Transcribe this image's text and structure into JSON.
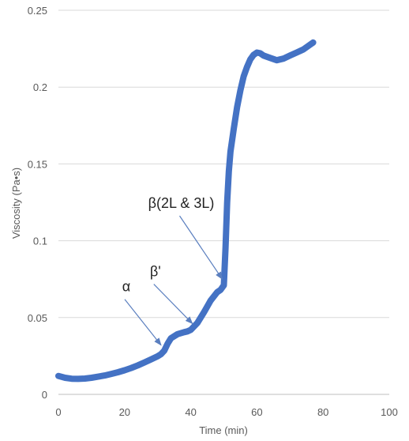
{
  "chart_data": {
    "type": "line",
    "title": "",
    "xlabel": "Time (min)",
    "ylabel": "Viscosity (Pa•s)",
    "xlim": [
      0,
      100
    ],
    "ylim": [
      0,
      0.25
    ],
    "xticks": [
      0,
      20,
      40,
      60,
      80,
      100
    ],
    "xtick_labels": [
      "0",
      "20",
      "40",
      "60",
      "80",
      "100"
    ],
    "yticks": [
      0,
      0.05,
      0.1,
      0.15,
      0.2,
      0.25
    ],
    "ytick_labels": [
      "0",
      "0.05",
      "0.1",
      "0.15",
      "0.2",
      "0.25"
    ],
    "grid": "horizontal",
    "series": [
      {
        "color": "#4472C4",
        "x": [
          0,
          2,
          4,
          6,
          8,
          10,
          12,
          14,
          16,
          18,
          20,
          22,
          24,
          26,
          28,
          30,
          31,
          32,
          33,
          34,
          36,
          38,
          39,
          40,
          42,
          44,
          46,
          48,
          49,
          50,
          50.5,
          51,
          51.5,
          52,
          53,
          54,
          55,
          56,
          57,
          58,
          59,
          60,
          61,
          62,
          64,
          66,
          68,
          70,
          72,
          74,
          76,
          77
        ],
        "y": [
          0.012,
          0.0108,
          0.0102,
          0.0101,
          0.0103,
          0.0108,
          0.0115,
          0.0123,
          0.0133,
          0.0144,
          0.0157,
          0.0172,
          0.0189,
          0.0208,
          0.0228,
          0.0248,
          0.0262,
          0.0285,
          0.033,
          0.0365,
          0.0392,
          0.0405,
          0.041,
          0.042,
          0.0465,
          0.0535,
          0.061,
          0.0665,
          0.068,
          0.071,
          0.095,
          0.125,
          0.145,
          0.158,
          0.173,
          0.187,
          0.198,
          0.207,
          0.213,
          0.218,
          0.221,
          0.2225,
          0.222,
          0.2205,
          0.219,
          0.2175,
          0.2185,
          0.2205,
          0.2225,
          0.2245,
          0.2275,
          0.229
        ]
      }
    ],
    "annotations": [
      {
        "text": "α",
        "x": 31.5,
        "y": 0.031
      },
      {
        "text": "β'",
        "x": 41,
        "y": 0.045
      },
      {
        "text": "β(2L & 3L)",
        "x": 50,
        "y": 0.074
      }
    ]
  }
}
